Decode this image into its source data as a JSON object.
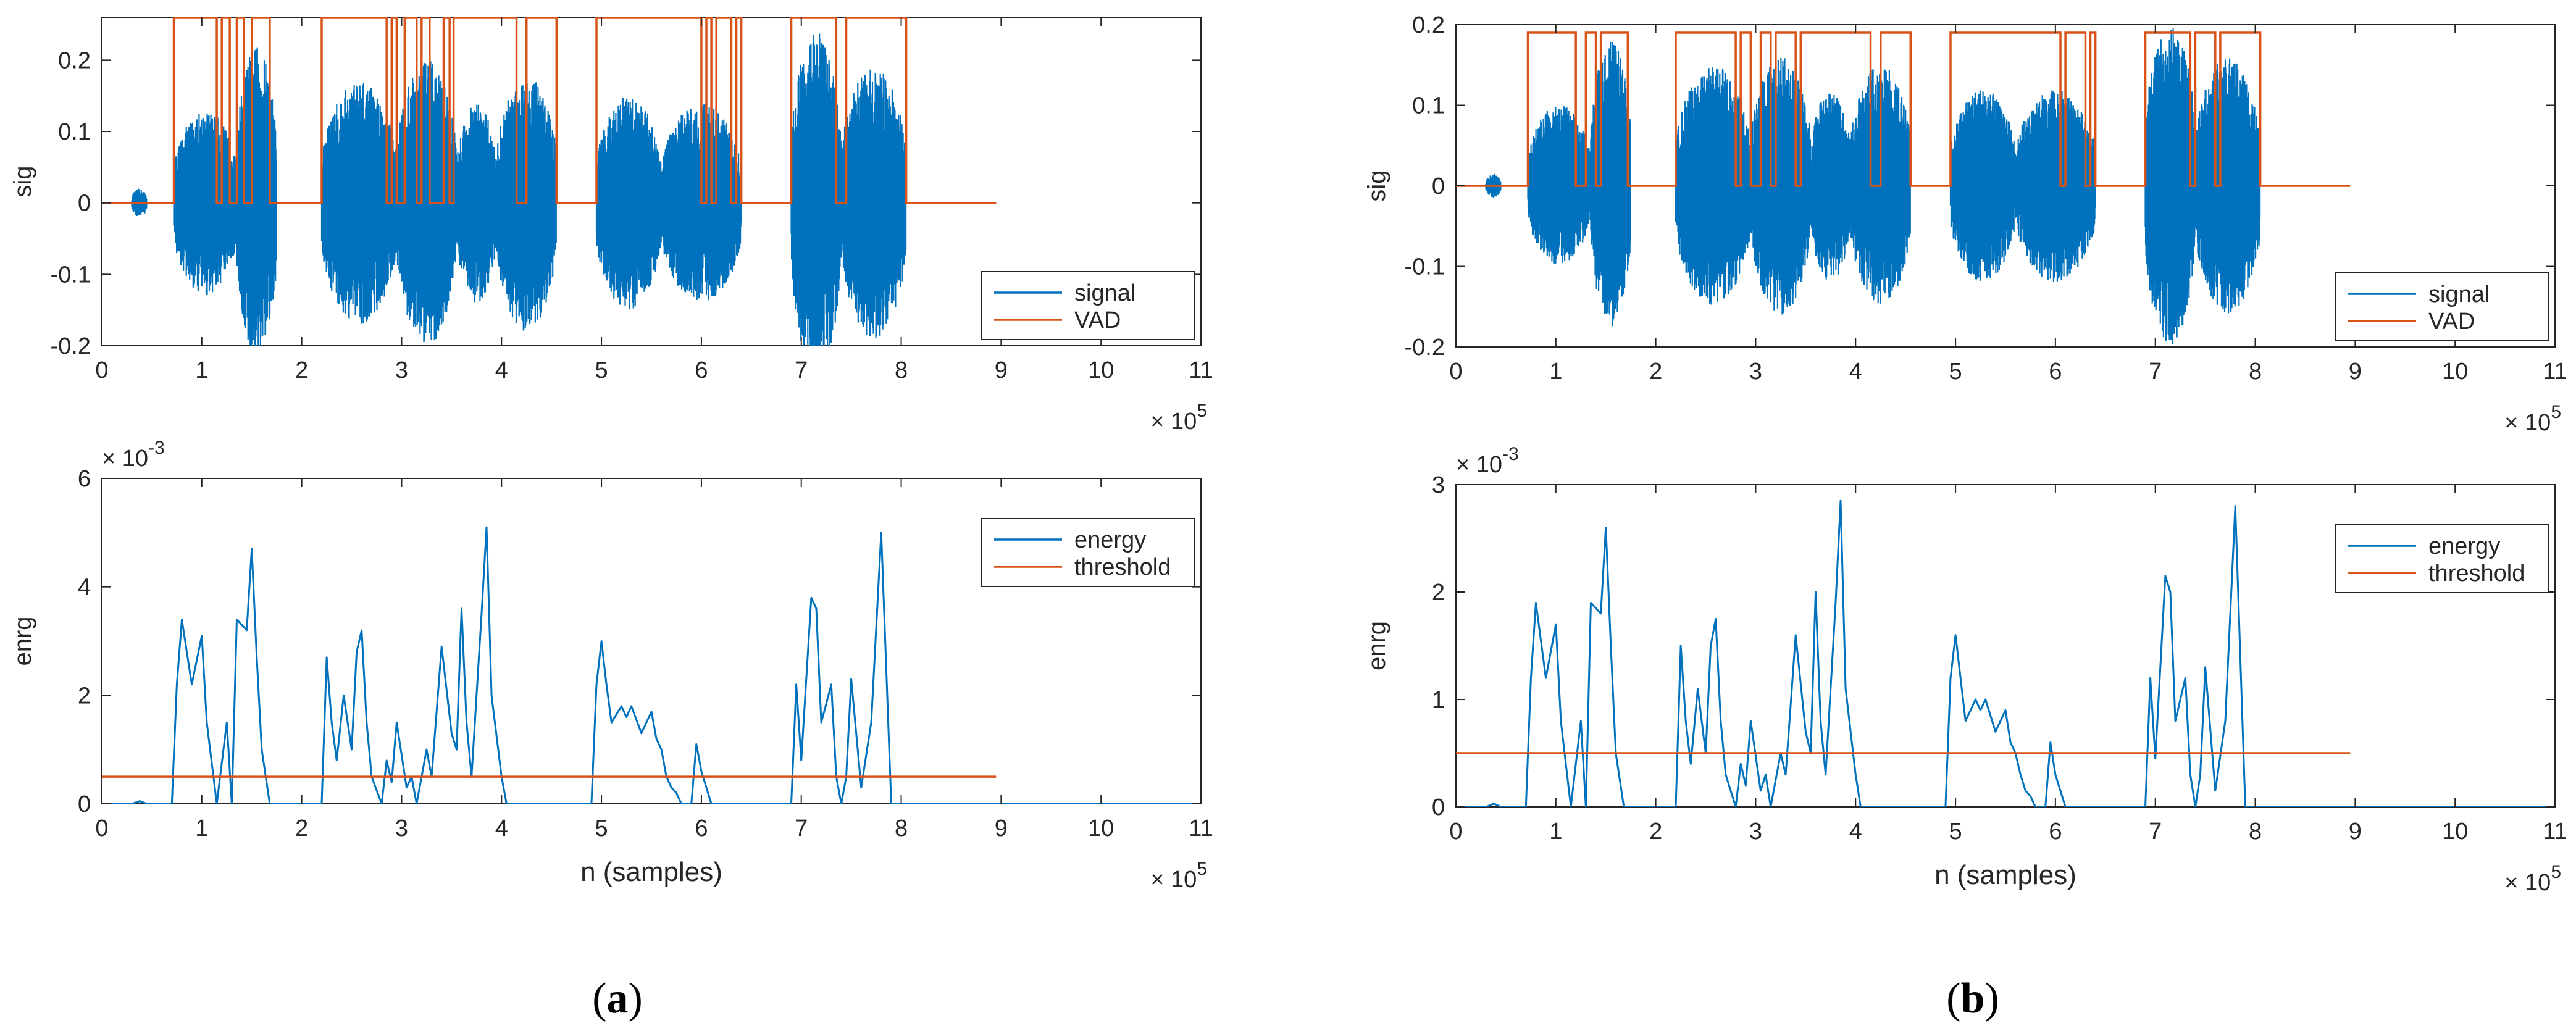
{
  "colors": {
    "signal": "#0072BD",
    "vad": "#D95319",
    "axis": "#262626"
  },
  "panels": [
    {
      "label": "(a)",
      "label_main": "a",
      "chart_data": [
        {
          "type": "line",
          "ylabel": "sig",
          "xlabel": "",
          "xlim": [
            0,
            11
          ],
          "ylim": [
            -0.2,
            0.26
          ],
          "xticks": [
            "0",
            "1",
            "2",
            "3",
            "4",
            "5",
            "6",
            "7",
            "8",
            "9",
            "10",
            "11"
          ],
          "yticks": [
            -0.2,
            -0.1,
            0,
            0.1,
            0.2
          ],
          "ytick_labels": [
            "-0.2",
            "-0.1",
            "0",
            "0.1",
            "0.2"
          ],
          "x_exponent": "× 10",
          "x_exponent_power": "5",
          "y_exponent": "",
          "y_exponent_power": "",
          "legend": [
            "signal",
            "VAD"
          ],
          "signal_bursts": [
            [
              0.3,
              0.45,
              0.02
            ],
            [
              0.72,
              1.35,
              0.13
            ],
            [
              1.35,
              1.75,
              0.22
            ],
            [
              2.2,
              2.95,
              0.17
            ],
            [
              2.95,
              3.55,
              0.2
            ],
            [
              3.55,
              3.95,
              0.14
            ],
            [
              3.95,
              4.55,
              0.18
            ],
            [
              4.95,
              5.6,
              0.15
            ],
            [
              5.6,
              6.4,
              0.14
            ],
            [
              6.9,
              7.4,
              0.24
            ],
            [
              7.4,
              8.05,
              0.19
            ]
          ],
          "vad_high": 0.26,
          "vad_segments": [
            [
              0.72,
              1.15
            ],
            [
              1.2,
              1.28
            ],
            [
              1.35,
              1.42
            ],
            [
              1.5,
              1.68
            ],
            [
              2.2,
              2.85
            ],
            [
              2.9,
              2.95
            ],
            [
              3.03,
              3.15
            ],
            [
              3.2,
              3.28
            ],
            [
              3.42,
              3.48
            ],
            [
              3.52,
              4.15
            ],
            [
              4.25,
              4.55
            ],
            [
              4.95,
              6.0
            ],
            [
              6.05,
              6.1
            ],
            [
              6.15,
              6.3
            ],
            [
              6.35,
              6.4
            ],
            [
              6.9,
              7.35
            ],
            [
              7.45,
              8.05
            ]
          ],
          "signal_end": 8.95
        },
        {
          "type": "line",
          "ylabel": "enrg",
          "xlabel": "n (samples)",
          "xlim": [
            0,
            11
          ],
          "ylim": [
            0,
            6
          ],
          "xticks": [
            "0",
            "1",
            "2",
            "3",
            "4",
            "5",
            "6",
            "7",
            "8",
            "9",
            "10",
            "11"
          ],
          "yticks": [
            0,
            2,
            4,
            6
          ],
          "ytick_labels": [
            "0",
            "2",
            "4",
            "6"
          ],
          "x_exponent": "× 10",
          "x_exponent_power": "5",
          "y_exponent": "× 10",
          "y_exponent_power": "-3",
          "legend": [
            "energy",
            "threshold"
          ],
          "energy_x": [
            0,
            0.3,
            0.38,
            0.45,
            0.7,
            0.75,
            0.8,
            0.9,
            1.0,
            1.05,
            1.15,
            1.25,
            1.3,
            1.35,
            1.45,
            1.5,
            1.55,
            1.6,
            1.68,
            1.75,
            2.2,
            2.25,
            2.3,
            2.35,
            2.42,
            2.5,
            2.55,
            2.6,
            2.65,
            2.7,
            2.8,
            2.85,
            2.9,
            2.95,
            3.05,
            3.1,
            3.15,
            3.25,
            3.3,
            3.4,
            3.5,
            3.55,
            3.6,
            3.65,
            3.7,
            3.8,
            3.85,
            3.9,
            4.0,
            4.05,
            4.1,
            4.2,
            4.25,
            4.3,
            4.35,
            4.4,
            4.55,
            4.9,
            4.95,
            5.0,
            5.05,
            5.1,
            5.2,
            5.25,
            5.3,
            5.4,
            5.5,
            5.55,
            5.6,
            5.65,
            5.7,
            5.75,
            5.8,
            5.9,
            5.95,
            6.0,
            6.1,
            6.2,
            6.3,
            6.35,
            6.4,
            6.9,
            6.95,
            7.0,
            7.1,
            7.15,
            7.2,
            7.3,
            7.35,
            7.4,
            7.45,
            7.5,
            7.6,
            7.7,
            7.8,
            7.85,
            7.9,
            8.0,
            8.05,
            8.95
          ],
          "energy_y": [
            0,
            0,
            0.05,
            0,
            0,
            2.2,
            3.4,
            2.2,
            3.1,
            1.5,
            0,
            1.5,
            0,
            3.4,
            3.2,
            4.7,
            2.7,
            1.0,
            0,
            0,
            0,
            2.7,
            1.5,
            0.8,
            2.0,
            1.0,
            2.8,
            3.2,
            1.5,
            0.5,
            0,
            0.8,
            0.4,
            1.5,
            0.3,
            0.5,
            0,
            1.0,
            0.5,
            2.9,
            1.3,
            1.0,
            3.6,
            1.5,
            0.5,
            3.5,
            5.1,
            2.0,
            0.5,
            0,
            0,
            0,
            0,
            0,
            0,
            0,
            0,
            0,
            2.2,
            3.0,
            2.2,
            1.5,
            1.8,
            1.6,
            1.8,
            1.3,
            1.7,
            1.2,
            1.0,
            0.5,
            0.3,
            0.2,
            0,
            0,
            1.1,
            0.6,
            0,
            0,
            0,
            0,
            0,
            0,
            2.2,
            0.8,
            3.8,
            3.6,
            1.5,
            2.2,
            0.5,
            0,
            0.5,
            2.3,
            0.3,
            1.5,
            5.0,
            2.5,
            0,
            0,
            0,
            0
          ],
          "threshold": 0.5,
          "threshold_x": [
            0,
            8.95
          ],
          "baseline_end": 11
        }
      ]
    },
    {
      "label": "(b)",
      "label_main": "b",
      "chart_data": [
        {
          "type": "line",
          "ylabel": "sig",
          "xlabel": "",
          "xlim": [
            0,
            11
          ],
          "ylim": [
            -0.2,
            0.2
          ],
          "xticks": [
            "0",
            "1",
            "2",
            "3",
            "4",
            "5",
            "6",
            "7",
            "8",
            "9",
            "10",
            "11"
          ],
          "yticks": [
            -0.2,
            -0.1,
            0,
            0.1,
            0.2
          ],
          "ytick_labels": [
            "-0.2",
            "-0.1",
            "0",
            "0.1",
            "0.2"
          ],
          "x_exponent": "× 10",
          "x_exponent_power": "5",
          "y_exponent": "",
          "y_exponent_power": "",
          "legend": [
            "signal",
            "VAD"
          ],
          "signal_bursts": [
            [
              0.3,
              0.45,
              0.015
            ],
            [
              0.72,
              1.35,
              0.1
            ],
            [
              1.35,
              1.75,
              0.18
            ],
            [
              2.2,
              2.95,
              0.15
            ],
            [
              2.95,
              3.55,
              0.16
            ],
            [
              3.55,
              3.95,
              0.12
            ],
            [
              3.95,
              4.55,
              0.15
            ],
            [
              4.95,
              5.6,
              0.12
            ],
            [
              5.6,
              6.4,
              0.12
            ],
            [
              6.9,
              7.4,
              0.2
            ],
            [
              7.4,
              8.05,
              0.16
            ]
          ],
          "vad_high": 0.19,
          "vad_segments": [
            [
              0.72,
              1.2
            ],
            [
              1.3,
              1.4
            ],
            [
              1.45,
              1.72
            ],
            [
              2.2,
              2.8
            ],
            [
              2.85,
              2.95
            ],
            [
              3.05,
              3.15
            ],
            [
              3.2,
              3.4
            ],
            [
              3.45,
              4.15
            ],
            [
              4.25,
              4.55
            ],
            [
              4.95,
              6.05
            ],
            [
              6.1,
              6.3
            ],
            [
              6.35,
              6.4
            ],
            [
              6.9,
              7.35
            ],
            [
              7.4,
              7.6
            ],
            [
              7.65,
              8.05
            ]
          ],
          "signal_end": 8.95
        },
        {
          "type": "line",
          "ylabel": "enrg",
          "xlabel": "n (samples)",
          "xlim": [
            0,
            11
          ],
          "ylim": [
            0,
            3
          ],
          "xticks": [
            "0",
            "1",
            "2",
            "3",
            "4",
            "5",
            "6",
            "7",
            "8",
            "9",
            "10",
            "11"
          ],
          "yticks": [
            0,
            1,
            2,
            3
          ],
          "ytick_labels": [
            "0",
            "1",
            "2",
            "3"
          ],
          "x_exponent": "× 10",
          "x_exponent_power": "5",
          "y_exponent": "× 10",
          "y_exponent_power": "-3",
          "legend": [
            "energy",
            "threshold"
          ],
          "energy_x": [
            0,
            0.3,
            0.38,
            0.45,
            0.7,
            0.75,
            0.8,
            0.9,
            1.0,
            1.05,
            1.15,
            1.25,
            1.3,
            1.35,
            1.45,
            1.5,
            1.55,
            1.6,
            1.68,
            1.75,
            2.2,
            2.25,
            2.3,
            2.35,
            2.42,
            2.5,
            2.55,
            2.6,
            2.65,
            2.7,
            2.8,
            2.85,
            2.9,
            2.95,
            3.05,
            3.1,
            3.15,
            3.25,
            3.3,
            3.4,
            3.5,
            3.55,
            3.6,
            3.65,
            3.7,
            3.8,
            3.85,
            3.9,
            4.0,
            4.05,
            4.1,
            4.2,
            4.25,
            4.3,
            4.35,
            4.4,
            4.55,
            4.9,
            4.95,
            5.0,
            5.05,
            5.1,
            5.2,
            5.25,
            5.3,
            5.4,
            5.5,
            5.55,
            5.6,
            5.65,
            5.7,
            5.75,
            5.8,
            5.9,
            5.95,
            6.0,
            6.1,
            6.2,
            6.3,
            6.35,
            6.4,
            6.9,
            6.95,
            7.0,
            7.1,
            7.15,
            7.2,
            7.3,
            7.35,
            7.4,
            7.45,
            7.5,
            7.6,
            7.7,
            7.8,
            7.85,
            7.9,
            8.0,
            8.05,
            8.95
          ],
          "energy_y": [
            0,
            0,
            0.03,
            0,
            0,
            1.2,
            1.9,
            1.2,
            1.7,
            0.8,
            0,
            0.8,
            0,
            1.9,
            1.8,
            2.6,
            1.5,
            0.5,
            0,
            0,
            0,
            1.5,
            0.8,
            0.4,
            1.1,
            0.5,
            1.5,
            1.75,
            0.8,
            0.3,
            0,
            0.4,
            0.2,
            0.8,
            0.15,
            0.3,
            0,
            0.5,
            0.3,
            1.6,
            0.7,
            0.5,
            2.0,
            0.8,
            0.3,
            1.9,
            2.85,
            1.1,
            0.3,
            0,
            0,
            0,
            0,
            0,
            0,
            0,
            0,
            0,
            1.2,
            1.6,
            1.2,
            0.8,
            1.0,
            0.9,
            1.0,
            0.7,
            0.9,
            0.6,
            0.5,
            0.3,
            0.15,
            0.1,
            0,
            0,
            0.6,
            0.3,
            0,
            0,
            0,
            0,
            0,
            0,
            1.2,
            0.45,
            2.15,
            2.0,
            0.8,
            1.2,
            0.3,
            0,
            0.3,
            1.3,
            0.15,
            0.8,
            2.8,
            1.4,
            0,
            0,
            0,
            0
          ],
          "threshold": 0.5,
          "threshold_x": [
            0,
            8.95
          ],
          "baseline_end": 11
        }
      ]
    }
  ]
}
